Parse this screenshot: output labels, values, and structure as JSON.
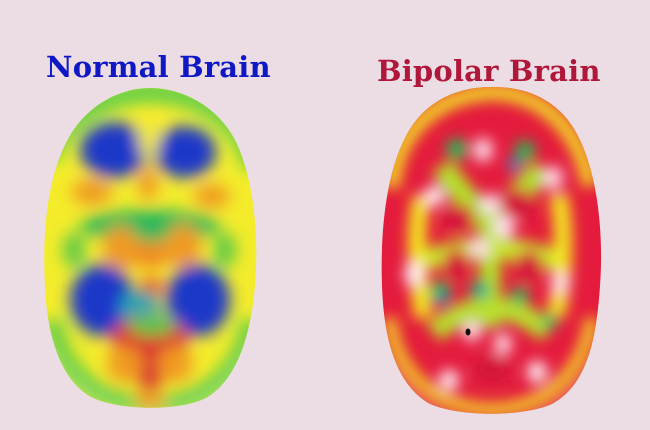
{
  "background_color": "#ebdde3",
  "panels": [
    {
      "label": "Normal Brain",
      "label_color": "#0f18c4",
      "scan_type": "pet-scan-axial-normal"
    },
    {
      "label": "Bipolar Brain",
      "label_color": "#b0173b",
      "scan_type": "pet-scan-axial-bipolar"
    }
  ],
  "scan_palette": {
    "blue": "#1733c8",
    "green": "#17b84a",
    "yellow": "#f3ea24",
    "orange": "#f09a22",
    "red": "#e61b3b",
    "white": "#fff3f7"
  }
}
